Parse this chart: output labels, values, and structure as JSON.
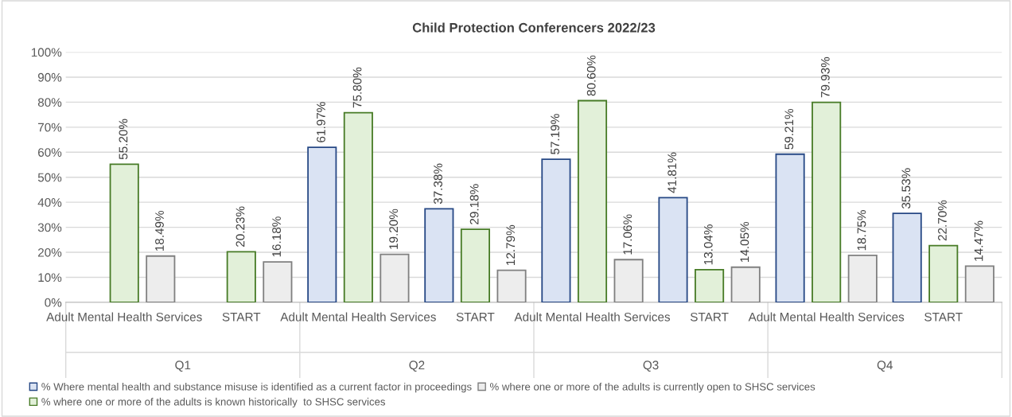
{
  "chart_data": {
    "type": "bar",
    "title": "Child Protection Conferencers 2022/23",
    "categories": [
      "Adult Mental Health Services",
      "START",
      "Adult Mental Health Services",
      "START",
      "Adult Mental Health Services",
      "START",
      "Adult Mental Health Services",
      "START"
    ],
    "annotations": [
      "Q1",
      "Q2",
      "Q3",
      "Q4"
    ],
    "series": [
      {
        "name": "% Where mental health and substance misuse is identified as a current factor in proceedings",
        "color": "#dae3f3",
        "values": [
          null,
          null,
          61.97,
          37.38,
          57.19,
          41.81,
          59.21,
          35.53
        ],
        "value_labels": [
          null,
          null,
          "61.97%",
          "37.38%",
          "57.19%",
          "41.81%",
          "59.21%",
          "35.53%"
        ]
      },
      {
        "name": "% where one or more of the adults is known historically  to SHSC services",
        "color": "#e2f0d9",
        "values": [
          55.2,
          20.23,
          75.8,
          29.18,
          80.6,
          13.04,
          79.93,
          22.7
        ],
        "value_labels": [
          "55.20%",
          "20.23%",
          "75.80%",
          "29.18%",
          "80.60%",
          "13.04%",
          "79.93%",
          "22.70%"
        ]
      },
      {
        "name": "% where one or more of the adults is currently open to SHSC services",
        "color": "#ededed",
        "values": [
          18.49,
          16.18,
          19.2,
          12.79,
          17.06,
          14.05,
          18.75,
          14.47
        ],
        "value_labels": [
          "18.49%",
          "16.18%",
          "19.20%",
          "12.79%",
          "17.06%",
          "14.05%",
          "18.75%",
          "14.47%"
        ]
      }
    ],
    "ylim": [
      0,
      100
    ],
    "yticks": [
      {
        "value": 0,
        "label": "0%"
      },
      {
        "value": 10,
        "label": "10%"
      },
      {
        "value": 20,
        "label": "20%"
      },
      {
        "value": 30,
        "label": "30%"
      },
      {
        "value": 40,
        "label": "40%"
      },
      {
        "value": 50,
        "label": "50%"
      },
      {
        "value": 60,
        "label": "60%"
      },
      {
        "value": 70,
        "label": "70%"
      },
      {
        "value": 80,
        "label": "80%"
      },
      {
        "value": 90,
        "label": "90%"
      },
      {
        "value": 100,
        "label": "100%"
      }
    ],
    "grid": "y",
    "legend": "bottom"
  }
}
